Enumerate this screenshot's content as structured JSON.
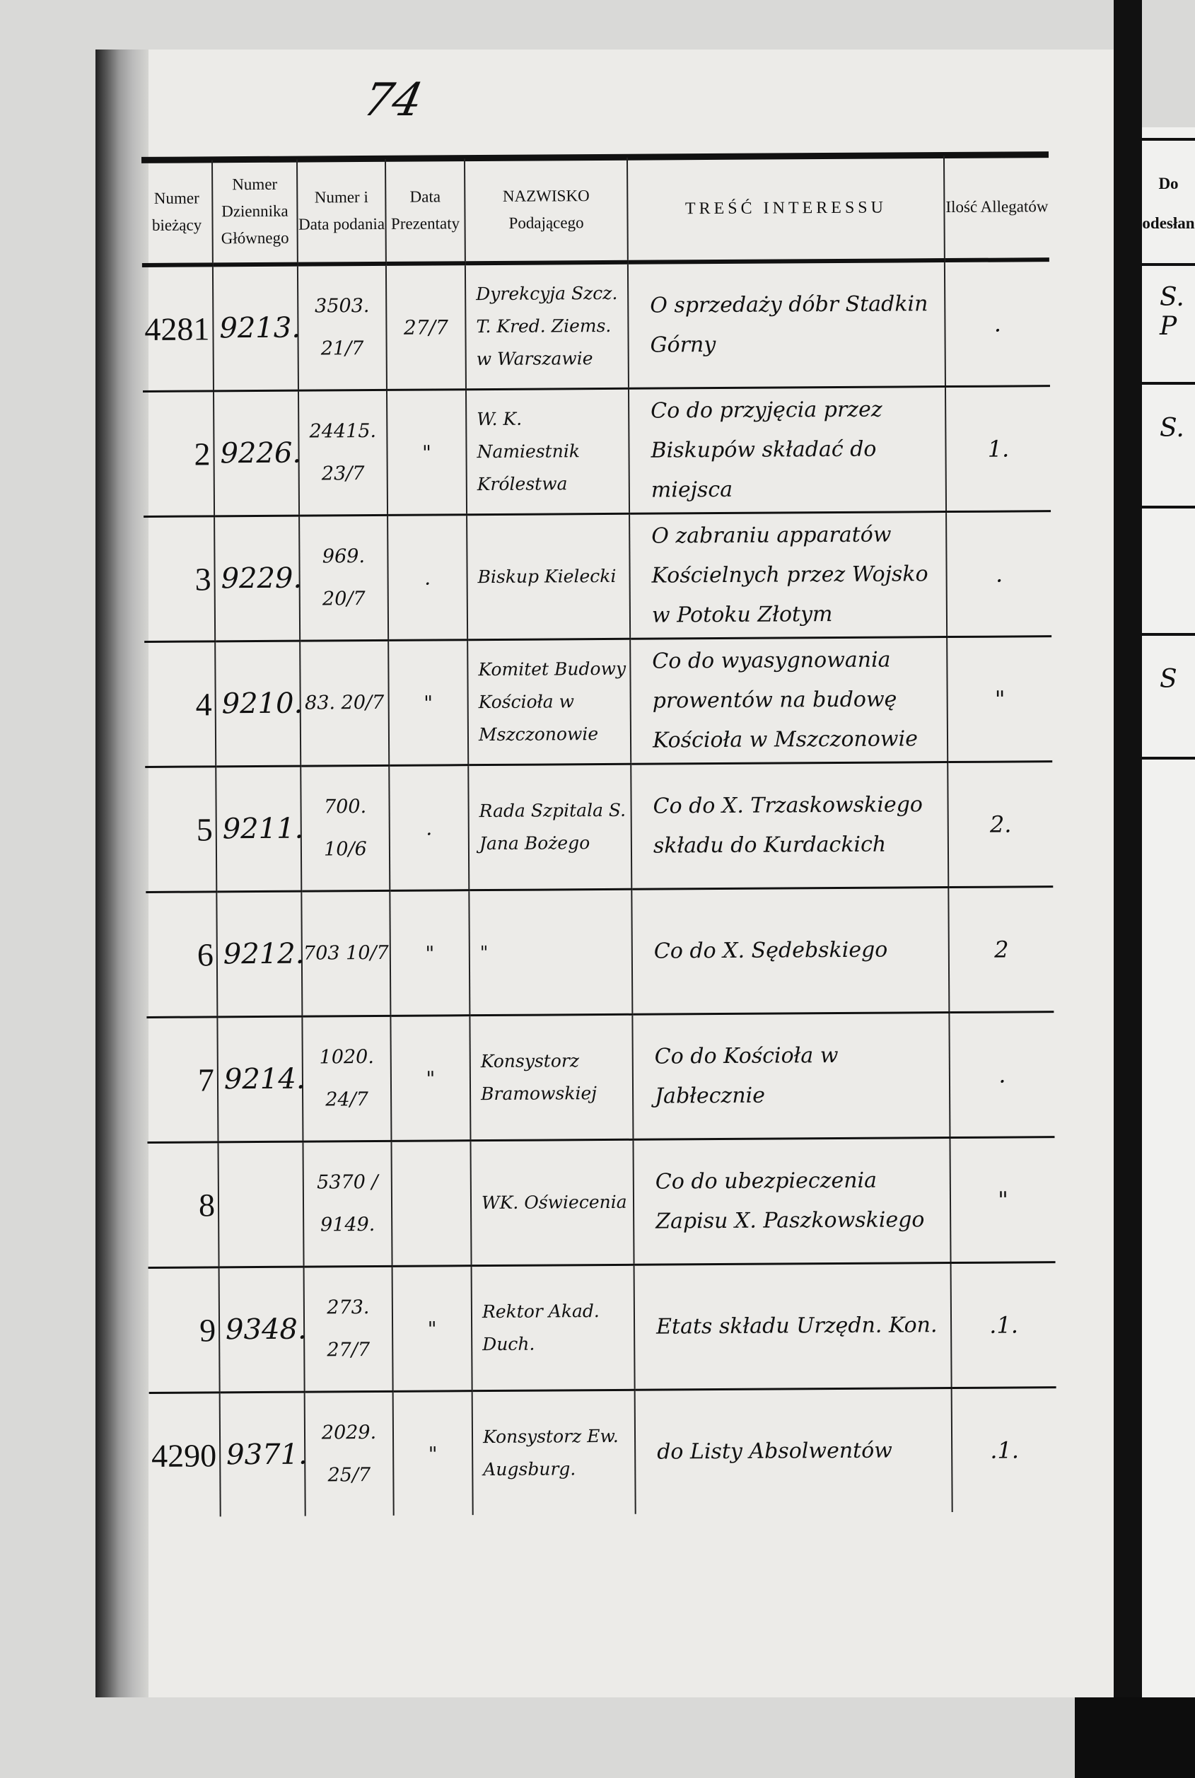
{
  "page_number": "74",
  "columns": [
    "Numer bieżący",
    "Numer Dziennika Głównego",
    "Numer i Data podania",
    "Data Prezentaty",
    "NAZWISKO Podającego",
    "TREŚĆ INTERESSU",
    "Ilość Allegatów"
  ],
  "rows": [
    {
      "numer": "4281",
      "dziennik": "9213.",
      "podanie": "3503. 21/7",
      "prezentata": "27/7",
      "nazwisko": "Dyrekcyja Szcz. T. Kred. Ziems. w Warszawie",
      "tresc": "O sprzedaży dóbr Stadkin Górny",
      "allegaty": "."
    },
    {
      "numer": "2",
      "dziennik": "9226.",
      "podanie": "24415. 23/7",
      "prezentata": "\"",
      "nazwisko": "W. K. Namiestnik Królestwa",
      "tresc": "Co do przyjęcia przez Biskupów składać do miejsca",
      "allegaty": "1."
    },
    {
      "numer": "3",
      "dziennik": "9229.",
      "podanie": "969. 20/7",
      "prezentata": ".",
      "nazwisko": "Biskup Kielecki",
      "tresc": "O zabraniu apparatów Kościelnych przez Wojsko w Potoku Złotym",
      "allegaty": "."
    },
    {
      "numer": "4",
      "dziennik": "9210.",
      "podanie": "83. 20/7",
      "prezentata": "\"",
      "nazwisko": "Komitet Budowy Kościoła w Mszczonowie",
      "tresc": "Co do wyasygnowania prowentów na budowę Kościoła w Mszczonowie",
      "allegaty": "\""
    },
    {
      "numer": "5",
      "dziennik": "9211.",
      "podanie": "700. 10/6",
      "prezentata": ".",
      "nazwisko": "Rada Szpitala S. Jana Bożego",
      "tresc": "Co do X. Trzaskowskiego składu do Kurdackich",
      "allegaty": "2."
    },
    {
      "numer": "6",
      "dziennik": "9212.",
      "podanie": "703 10/7",
      "prezentata": "\"",
      "nazwisko": "\"",
      "tresc": "Co do X. Sędebskiego",
      "allegaty": "2"
    },
    {
      "numer": "7",
      "dziennik": "9214.",
      "podanie": "1020. 24/7",
      "prezentata": "\"",
      "nazwisko": "Konsystorz Bramowskiej",
      "tresc": "Co do Kościoła w Jabłecznie",
      "allegaty": "."
    },
    {
      "numer": "8",
      "dziennik": "",
      "podanie": "5370 / 9149.",
      "prezentata": "",
      "nazwisko": "WK. Oświecenia",
      "tresc": "Co do ubezpieczenia Zapisu X. Paszkowskiego",
      "allegaty": "\""
    },
    {
      "numer": "9",
      "dziennik": "9348.",
      "podanie": "273. 27/7",
      "prezentata": "\"",
      "nazwisko": "Rektor Akad. Duch.",
      "tresc": "Etats składu Urzędn. Kon.",
      "allegaty": ".1."
    },
    {
      "numer": "4290",
      "dziennik": "9371.",
      "podanie": "2029. 25/7",
      "prezentata": "\"",
      "nazwisko": "Konsystorz Ew. Augsburg.",
      "tresc": "do Listy Absolwentów",
      "allegaty": ".1."
    }
  ],
  "right_page": {
    "header": "Do odesłan",
    "marks": [
      "S. P",
      "S.",
      "S"
    ]
  }
}
